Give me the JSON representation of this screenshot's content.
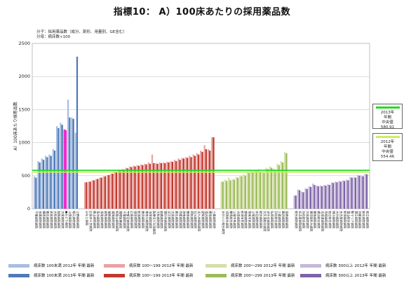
{
  "title": "指標10： A）100床あたりの採用薬品数",
  "note": [
    "分子：採用薬品数（成分、剤形、用量別、GE含む）",
    "分母：病床数÷100"
  ],
  "colors": {
    "s100_2012": "#a9bde0",
    "s100_2013": "#4f7ab8",
    "s199_2012": "#e8a3a3",
    "s199_2013": "#c0392b",
    "s299_2012": "#d4dfa8",
    "s299_2013": "#9bbb59",
    "s300_2012": "#c5b8d8",
    "s300_2013": "#7e62a7",
    "highlight": "#ee22cc",
    "median_2013": "#22dd22",
    "median_2012": "#ccee66"
  },
  "median_boxes": [
    {
      "label": "2013年\n年間\n中央値",
      "value": "580.91",
      "color": "#22dd22"
    },
    {
      "label": "2012年\n年間\n中央値",
      "value": "554.46",
      "color": "#ccee66"
    }
  ],
  "legend": [
    {
      "text": "病床数 100未満 2012年 年間 最新",
      "color": "#a9bde0"
    },
    {
      "text": "病床数 100～199 2012年 年間 最新",
      "color": "#e8a3a3"
    },
    {
      "text": "病床数 200～299 2012年 年間 最新",
      "color": "#d4dfa8"
    },
    {
      "text": "病床数 300以上 2012年 年間 最新",
      "color": "#c5b8d8"
    },
    {
      "text": "病床数 100未満 2013年 年間 最新",
      "color": "#4f7ab8"
    },
    {
      "text": "病床数 100～199 2013年 年間 最新",
      "color": "#c0392b"
    },
    {
      "text": "病床数 200～299 2013年 年間 最新",
      "color": "#9bbb59"
    },
    {
      "text": "病床数 300以上 2013年 年間 最新",
      "color": "#7e62a7"
    }
  ],
  "chart_data": {
    "type": "bar",
    "title": "指標10： A）100床あたりの採用薬品数",
    "ylabel": "A）100床あたり採用品数",
    "ylim": [
      0,
      2500
    ],
    "yticks": [
      0,
      500,
      1000,
      1500,
      2000,
      2500
    ],
    "grid": true,
    "medians": {
      "2013": 580.91,
      "2012": 554.46
    },
    "series": [
      {
        "name": "病床数 100未満",
        "categories": [
          "千葉病院病院",
          "金属病院病院",
          "藤田病院病院",
          "東北病院病院",
          "高島病院病院",
          "大和病院病院",
          "加賀病院病院",
          "大塚病院病院",
          "●みどり病院",
          "上田病院病院",
          "堀元病院病院",
          "上野病院病院"
        ],
        "v2012": [
          490,
          720,
          760,
          800,
          820,
          900,
          1250,
          1300,
          1200,
          1650,
          1380,
          1150
        ],
        "v2013": [
          470,
          700,
          740,
          780,
          800,
          880,
          1220,
          1270,
          1190,
          1380,
          1360,
          2300
        ]
      },
      {
        "name": "病床数 100～199",
        "categories": [
          "みなと病院",
          "広島赤十字病院",
          "飯山病院病院",
          "長浜病院病院",
          "長尾病院病院",
          "高知病院病院",
          "尾崎病院病院",
          "福岡病院病院",
          "和歌山病院病院",
          "国際医療病院",
          "千葉病院病院",
          "宇都宮病院病院",
          "広島病院病院",
          "島田病院病院",
          "新潟病院病院",
          "東京病院病院",
          "神奈川病院病院",
          "浅草病院病院",
          "医療法人社団病院",
          "大和病院病院",
          "船橋病院病院",
          "国分寺病院病院",
          "足立病院病院",
          "大阪病院病院",
          "東北病院病院",
          "京都病院病院",
          "湘南病院病院",
          "栗原病院病院",
          "明和病院病院",
          "石川病院病院",
          "北九州病院病院",
          "愛知病院病院",
          "湯沢病院病院",
          "東海病院病院",
          "三鷹病院病院"
        ],
        "v2012": [
          400,
          410,
          430,
          450,
          470,
          490,
          510,
          530,
          560,
          580,
          600,
          620,
          640,
          650,
          660,
          670,
          680,
          700,
          820,
          690,
          700,
          700,
          710,
          720,
          740,
          760,
          770,
          780,
          800,
          820,
          840,
          880,
          960,
          900,
          1080
        ],
        "v2013": [
          400,
          410,
          430,
          450,
          470,
          490,
          510,
          530,
          550,
          570,
          590,
          610,
          630,
          640,
          650,
          660,
          670,
          680,
          690,
          680,
          690,
          690,
          700,
          710,
          720,
          740,
          760,
          770,
          780,
          800,
          820,
          860,
          900,
          880,
          1080
        ]
      },
      {
        "name": "病床数 200～299",
        "categories": [
          "あおいい総合病院",
          "沼田総合病院",
          "練馬総合病院",
          "上尾中央病院",
          "大田病院病院",
          "新潟市民病院",
          "都城病院病院",
          "青梅市民病院",
          "上尾病院病院",
          "赤羽病院病院",
          "総合病院病院",
          "大久保総合病院",
          "済生会病院病院",
          "弘前病院病院",
          "浜松総合病院",
          "三菱病院病院",
          "藤沢病院病院",
          "長崎病院病院"
        ],
        "v2012": [
          410,
          440,
          470,
          450,
          480,
          500,
          520,
          560,
          580,
          590,
          600,
          560,
          620,
          640,
          610,
          680,
          720,
          860
        ],
        "v2013": [
          410,
          420,
          430,
          440,
          470,
          490,
          500,
          540,
          560,
          570,
          560,
          540,
          600,
          620,
          590,
          660,
          700,
          840
        ]
      },
      {
        "name": "病床数 300以上",
        "categories": [
          "総合病院病院",
          "名古屋病院病院",
          "浜松総合病院",
          "大阪病院病院",
          "東京医科大病院",
          "東海病院病院",
          "横浜総合病院",
          "北海道病院病院",
          "茨城病院病院",
          "協立総合病院",
          "旭川病院病院",
          "大分病院病院",
          "名古屋病院病院",
          "新潟病院病院",
          "富山総合病院",
          "聖マリア病院",
          "国立病院病院",
          "京都病院病院",
          "総合病院病院",
          "県立病院病院"
        ],
        "v2012": [
          200,
          290,
          260,
          310,
          340,
          380,
          350,
          350,
          360,
          370,
          400,
          410,
          420,
          430,
          440,
          480,
          480,
          510,
          500,
          530
        ],
        "v2013": [
          200,
          280,
          250,
          300,
          330,
          360,
          340,
          340,
          350,
          360,
          390,
          400,
          410,
          420,
          430,
          470,
          470,
          500,
          490,
          520
        ]
      }
    ]
  }
}
